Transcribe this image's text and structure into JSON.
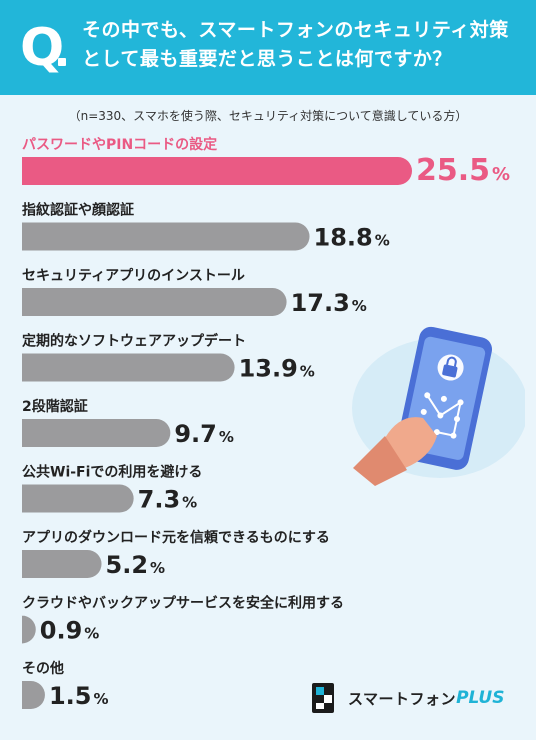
{
  "header": {
    "q_label": "Q",
    "question": "その中でも、スマートフォンのセキュリティ対策として最も重要だと思うことは何ですか？"
  },
  "note": "（n=330、スマホを使う際、セキュリティ対策について意識している方）",
  "colors": {
    "header_bg": "#22b6d9",
    "panel_bg": "#eaf5fb",
    "highlight": "#ea5a84",
    "bar": "#9b9b9d",
    "text": "#222222"
  },
  "chart_data": {
    "type": "bar",
    "orientation": "horizontal",
    "unit": "%",
    "categories": [
      "パスワードやPINコードの設定",
      "指紋認証や顔認証",
      "セキュリティアプリのインストール",
      "定期的なソフトウェアアップデート",
      "2段階認証",
      "公共Wi-Fiでの利用を避ける",
      "アプリのダウンロード元を信頼できるものにする",
      "クラウドやバックアップサービスを安全に利用する",
      "その他"
    ],
    "values": [
      25.5,
      18.8,
      17.3,
      13.9,
      9.7,
      7.3,
      5.2,
      0.9,
      1.5
    ],
    "value_labels": [
      "25.5",
      "18.8",
      "17.3",
      "13.9",
      "9.7",
      "7.3",
      "5.2",
      "0.9",
      "1.5"
    ],
    "highlight_index": 0
  },
  "illustration": {
    "icon": "smartphone-lock-icon"
  },
  "logo": {
    "text": "スマートフォン",
    "plus": "PLUS"
  }
}
